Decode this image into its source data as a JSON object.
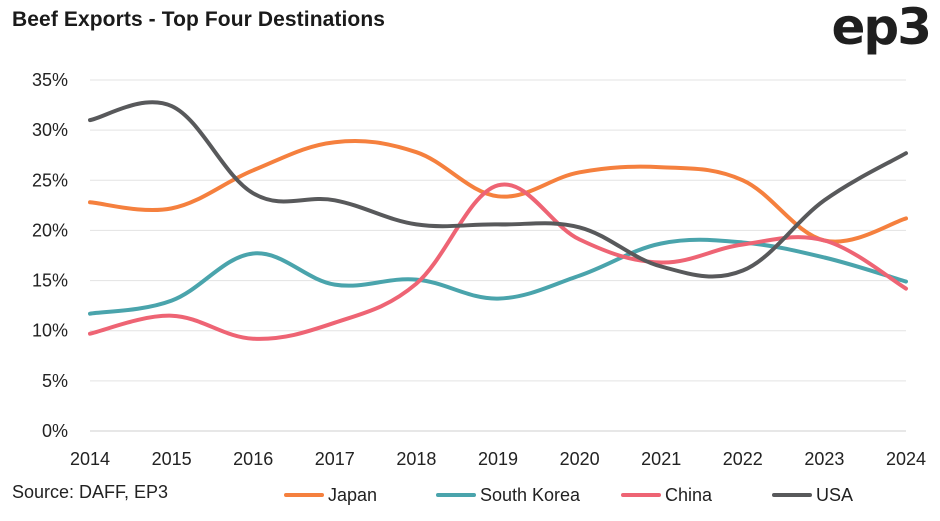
{
  "title": "Beef Exports - Top Four Destinations",
  "logo_text": "ep3",
  "source": "Source: DAFF, EP3",
  "chart_data": {
    "type": "line",
    "title": "Beef Exports - Top Four Destinations",
    "xlabel": "",
    "ylabel": "",
    "x": [
      "2014",
      "2015",
      "2016",
      "2017",
      "2018",
      "2019",
      "2020",
      "2021",
      "2022",
      "2023",
      "2024"
    ],
    "y_ticks": [
      "0%",
      "5%",
      "10%",
      "15%",
      "20%",
      "25%",
      "30%",
      "35%"
    ],
    "ylim": [
      0,
      35
    ],
    "grid": "horizontal",
    "legend_position": "bottom",
    "smooth": true,
    "series": [
      {
        "name": "Japan",
        "color": "#F5803E",
        "values": [
          22.8,
          22.2,
          26.0,
          28.8,
          27.8,
          23.4,
          25.8,
          26.3,
          25.0,
          19.0,
          21.2
        ]
      },
      {
        "name": "South Korea",
        "color": "#4AA4AC",
        "values": [
          11.7,
          13.0,
          17.7,
          14.6,
          15.1,
          13.2,
          15.5,
          18.7,
          18.8,
          17.3,
          14.9
        ]
      },
      {
        "name": "China",
        "color": "#EE6474",
        "values": [
          9.7,
          11.5,
          9.2,
          10.8,
          14.7,
          24.5,
          19.1,
          16.8,
          18.6,
          19.0,
          14.2
        ]
      },
      {
        "name": "USA",
        "color": "#58595B",
        "values": [
          31.0,
          32.4,
          23.7,
          23.0,
          20.6,
          20.6,
          20.3,
          16.4,
          16.0,
          23.0,
          27.7
        ]
      }
    ]
  }
}
